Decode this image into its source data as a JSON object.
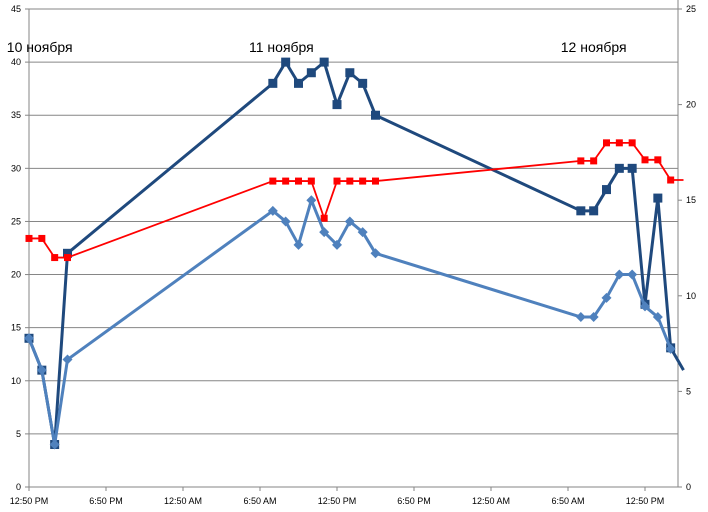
{
  "chart_data": {
    "type": "line",
    "title": "",
    "xlabel": "",
    "ylabel": "",
    "grid": true,
    "legend": "none",
    "x_range": [
      "11-10 12:50",
      "11-12 16:50"
    ],
    "x_tick_labels": [
      "12:50 PM",
      "6:50 PM",
      "12:50 AM",
      "6:50 AM",
      "12:50 PM",
      "6:50 PM",
      "12:50 AM",
      "6:50 AM",
      "12:50 PM"
    ],
    "ylim": [
      0,
      45
    ],
    "y_ticks": [
      0,
      5,
      10,
      15,
      20,
      25,
      30,
      35,
      40,
      45
    ],
    "y2lim": [
      0,
      25
    ],
    "y2_ticks": [
      0,
      5,
      10,
      15,
      20,
      25
    ],
    "annotations": [
      {
        "text": "10 ноября",
        "at": "11-10 13:40"
      },
      {
        "text": "11 ноября",
        "at": "11-11 08:30"
      },
      {
        "text": "12 ноября",
        "at": "11-12 08:50"
      }
    ],
    "series": [
      {
        "color": "#1F497D",
        "marker": "square",
        "axis": "left",
        "x": [
          "11-10 12:50",
          "11-10 13:50",
          "11-10 14:50",
          "11-10 15:50",
          "11-11 07:50",
          "11-11 08:50",
          "11-11 09:50",
          "11-11 10:50",
          "11-11 11:50",
          "11-11 12:50",
          "11-11 13:50",
          "11-11 14:50",
          "11-11 15:50",
          "11-12 07:50",
          "11-12 08:50",
          "11-12 09:50",
          "11-12 10:50",
          "11-12 11:50",
          "11-12 12:50",
          "11-12 13:50",
          "11-12 14:50",
          "11-12 15:50"
        ],
        "y": [
          14,
          11,
          4,
          22,
          38,
          40,
          38,
          39,
          40,
          36,
          39,
          38,
          35,
          26,
          26,
          28,
          30,
          30,
          17.2,
          27.2,
          13.1,
          11
        ]
      },
      {
        "color": "#FF0000",
        "marker": "square-small",
        "axis": "left",
        "x": [
          "11-10 12:50",
          "11-10 13:50",
          "11-10 14:50",
          "11-10 15:50",
          "11-11 07:50",
          "11-11 08:50",
          "11-11 09:50",
          "11-11 10:50",
          "11-11 11:50",
          "11-11 12:50",
          "11-11 13:50",
          "11-11 14:50",
          "11-11 15:50",
          "11-12 07:50",
          "11-12 08:50",
          "11-12 09:50",
          "11-12 10:50",
          "11-12 11:50",
          "11-12 12:50",
          "11-12 13:50",
          "11-12 14:50",
          "11-12 15:50"
        ],
        "y": [
          23.4,
          23.4,
          21.6,
          21.6,
          28.8,
          28.8,
          28.8,
          28.8,
          25.3,
          28.8,
          28.8,
          28.8,
          28.8,
          30.7,
          30.7,
          32.4,
          32.4,
          32.4,
          30.8,
          30.8,
          28.9,
          28.9
        ]
      },
      {
        "color": "#4F81BD",
        "marker": "diamond",
        "axis": "left",
        "x": [
          "11-10 12:50",
          "11-10 13:50",
          "11-10 14:50",
          "11-10 15:50",
          "11-11 07:50",
          "11-11 08:50",
          "11-11 09:50",
          "11-11 10:50",
          "11-11 11:50",
          "11-11 12:50",
          "11-11 13:50",
          "11-11 14:50",
          "11-11 15:50",
          "11-12 07:50",
          "11-12 08:50",
          "11-12 09:50",
          "11-12 10:50",
          "11-12 11:50",
          "11-12 12:50",
          "11-12 13:50",
          "11-12 14:50"
        ],
        "y": [
          14,
          11,
          4,
          12,
          26,
          25,
          22.8,
          27,
          24,
          22.8,
          25,
          24,
          22,
          16,
          16,
          17.8,
          20,
          20,
          17,
          16,
          13
        ]
      }
    ]
  }
}
